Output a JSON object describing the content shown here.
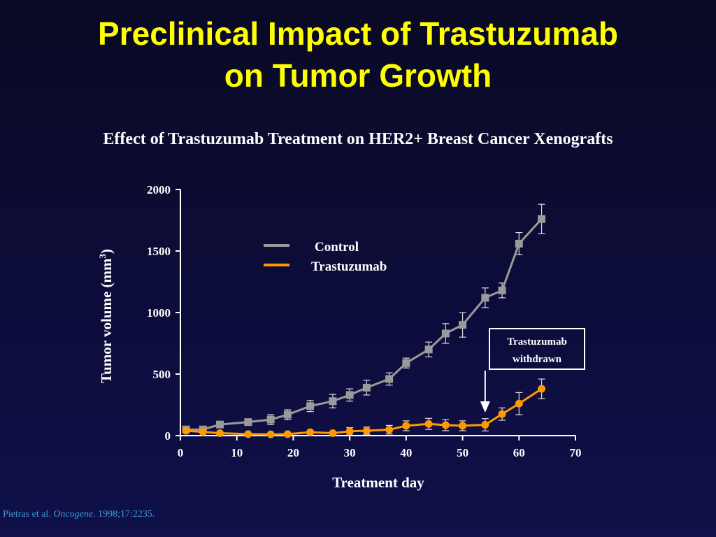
{
  "slide": {
    "title_line1": "Preclinical Impact of Trastuzumab",
    "title_line2": "on Tumor Growth",
    "subtitle": "Effect of Trastuzumab Treatment on HER2+ Breast Cancer Xenografts"
  },
  "annotation": {
    "line1": "Trastuzumab",
    "line2": "withdrawn",
    "arrow_day": 54
  },
  "citation": {
    "authors": "Pietras et al. ",
    "journal": "Oncogene",
    "details": ". 1998;17:2235."
  },
  "colors": {
    "title": "#ffff00",
    "control": "#9a9a9a",
    "trastuzumab": "#ff9900",
    "axis": "#ffffff",
    "citation": "#3a9ad9"
  },
  "chart_data": {
    "type": "line",
    "title": "Effect of Trastuzumab Treatment on HER2+ Breast Cancer Xenografts",
    "xlabel": "Treatment day",
    "ylabel": "Tumor volume (mm3)",
    "ylabel_main": "Tumor volume (mm",
    "ylabel_sup": "3",
    "ylabel_close": ")",
    "xlim": [
      0,
      70
    ],
    "ylim": [
      0,
      2000
    ],
    "xticks": [
      0,
      10,
      20,
      30,
      40,
      50,
      60,
      70
    ],
    "yticks": [
      0,
      500,
      1000,
      1500,
      2000
    ],
    "grid": false,
    "legend_position": "top-center",
    "series": [
      {
        "name": "Control",
        "color": "#9a9a9a",
        "marker": "square",
        "x": [
          1,
          4,
          7,
          12,
          16,
          19,
          23,
          27,
          30,
          33,
          37,
          40,
          44,
          47,
          50,
          54,
          57,
          60,
          64
        ],
        "y": [
          50,
          50,
          90,
          110,
          130,
          170,
          240,
          280,
          330,
          390,
          460,
          590,
          700,
          830,
          900,
          1120,
          1180,
          1560,
          1760
        ],
        "err": [
          20,
          20,
          25,
          25,
          40,
          40,
          45,
          55,
          50,
          60,
          50,
          40,
          60,
          80,
          100,
          80,
          60,
          90,
          120
        ]
      },
      {
        "name": "Trastuzumab",
        "color": "#ff9900",
        "marker": "circle",
        "x": [
          1,
          4,
          7,
          12,
          16,
          19,
          23,
          27,
          30,
          33,
          37,
          40,
          44,
          47,
          50,
          54,
          57,
          60,
          64
        ],
        "y": [
          40,
          30,
          20,
          12,
          10,
          12,
          28,
          20,
          35,
          40,
          48,
          80,
          95,
          85,
          80,
          88,
          175,
          260,
          380
        ],
        "err": [
          15,
          10,
          10,
          8,
          8,
          10,
          10,
          10,
          30,
          30,
          35,
          40,
          45,
          45,
          40,
          50,
          50,
          90,
          80
        ]
      }
    ]
  }
}
